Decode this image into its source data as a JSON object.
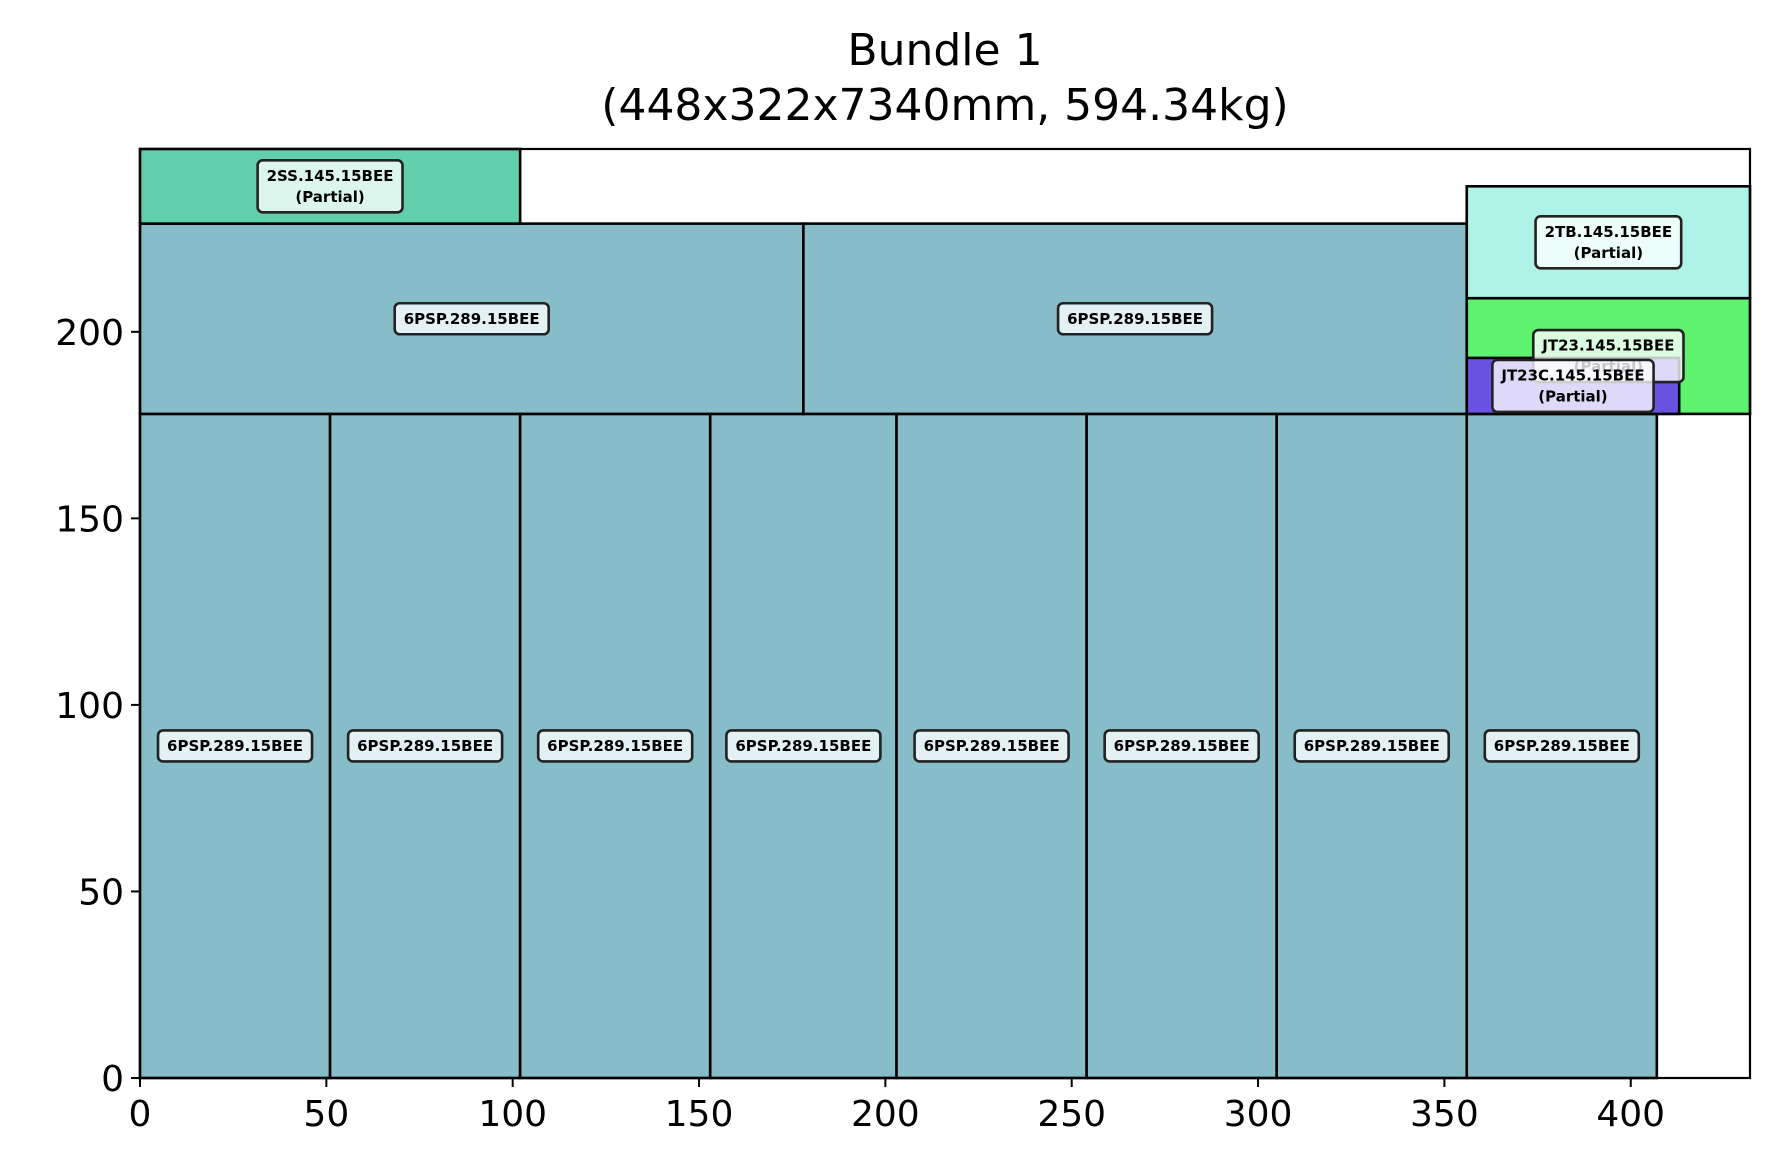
{
  "chart_data": {
    "type": "rectangle-packing",
    "title": "Bundle 1",
    "subtitle": "(448x322x7340mm, 594.34kg)",
    "xlabel": "",
    "ylabel": "",
    "xlim": [
      0,
      432
    ],
    "ylim": [
      0,
      249
    ],
    "xticks": [
      0,
      50,
      100,
      150,
      200,
      250,
      300,
      350,
      400
    ],
    "yticks": [
      0,
      50,
      100,
      150,
      200
    ],
    "grid": false,
    "colors": {
      "6PSP": "#86bdc8",
      "2SS": "#62cfac",
      "2TB": "#aff3e8",
      "JT23": "#5ef26e",
      "JT23C": "#6a52e0",
      "edge": "#000000",
      "label_bg": "#ffffff",
      "label_edge": "#222222"
    },
    "pieces": [
      {
        "label": "6PSP.289.15BEE",
        "x": 0,
        "y": 0,
        "w": 51,
        "h": 178,
        "color": "6PSP"
      },
      {
        "label": "6PSP.289.15BEE",
        "x": 51,
        "y": 0,
        "w": 51,
        "h": 178,
        "color": "6PSP"
      },
      {
        "label": "6PSP.289.15BEE",
        "x": 102,
        "y": 0,
        "w": 51,
        "h": 178,
        "color": "6PSP"
      },
      {
        "label": "6PSP.289.15BEE",
        "x": 153,
        "y": 0,
        "w": 50,
        "h": 178,
        "color": "6PSP"
      },
      {
        "label": "6PSP.289.15BEE",
        "x": 203,
        "y": 0,
        "w": 51,
        "h": 178,
        "color": "6PSP"
      },
      {
        "label": "6PSP.289.15BEE",
        "x": 254,
        "y": 0,
        "w": 51,
        "h": 178,
        "color": "6PSP"
      },
      {
        "label": "6PSP.289.15BEE",
        "x": 305,
        "y": 0,
        "w": 51,
        "h": 178,
        "color": "6PSP"
      },
      {
        "label": "6PSP.289.15BEE",
        "x": 356,
        "y": 0,
        "w": 51,
        "h": 178,
        "color": "6PSP"
      },
      {
        "label": "6PSP.289.15BEE",
        "x": 0,
        "y": 178,
        "w": 178,
        "h": 51,
        "color": "6PSP"
      },
      {
        "label": "6PSP.289.15BEE",
        "x": 178,
        "y": 178,
        "w": 178,
        "h": 51,
        "color": "6PSP"
      },
      {
        "label": "2SS.145.15BEE",
        "sublabel": "(Partial)",
        "x": 0,
        "y": 229,
        "w": 102,
        "h": 20,
        "color": "2SS"
      },
      {
        "label": "2TB.145.15BEE",
        "sublabel": "(Partial)",
        "x": 356,
        "y": 209,
        "w": 76,
        "h": 30,
        "color": "2TB"
      },
      {
        "label": "JT23.145.15BEE",
        "sublabel": "(Partial)",
        "x": 356,
        "y": 178,
        "w": 76,
        "h": 31,
        "color": "JT23"
      },
      {
        "label": "JT23C.145.15BEE",
        "sublabel": "(Partial)",
        "x": 356,
        "y": 178,
        "w": 57,
        "h": 15,
        "color": "JT23C"
      }
    ]
  }
}
